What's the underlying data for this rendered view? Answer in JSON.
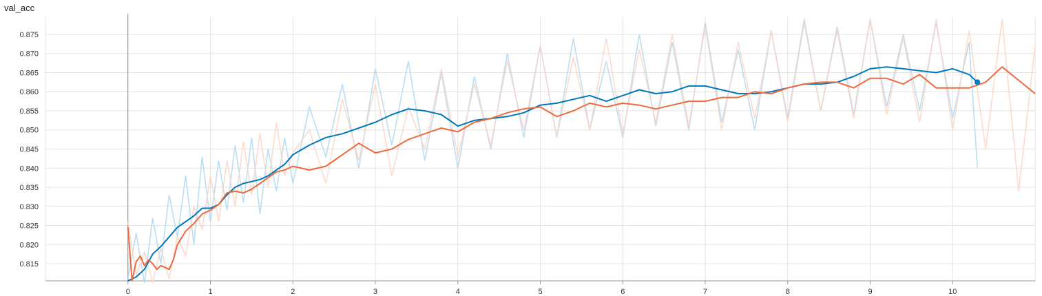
{
  "chart_title": "val_acc",
  "chart_data": {
    "type": "line",
    "title": "val_acc",
    "xlabel": "",
    "ylabel": "",
    "xlim": [
      -1,
      11
    ],
    "ylim": [
      0.8105,
      0.8795
    ],
    "x_ticks": [
      "0",
      "1",
      "2",
      "3",
      "4",
      "5",
      "6",
      "7",
      "8",
      "9",
      "10"
    ],
    "y_ticks": [
      "0.815",
      "0.820",
      "0.825",
      "0.830",
      "0.835",
      "0.840",
      "0.845",
      "0.850",
      "0.855",
      "0.860",
      "0.865",
      "0.870",
      "0.875"
    ],
    "grid": true,
    "series": [
      {
        "color": "#0077bb",
        "raw_color": "#b3d7ee",
        "smoothed": {
          "x": [
            0.0,
            0.1,
            0.2,
            0.3,
            0.4,
            0.5,
            0.6,
            0.7,
            0.8,
            0.9,
            1.0,
            1.1,
            1.2,
            1.3,
            1.4,
            1.5,
            1.6,
            1.7,
            1.8,
            1.9,
            2.0,
            2.2,
            2.4,
            2.6,
            2.8,
            3.0,
            3.2,
            3.4,
            3.6,
            3.8,
            4.0,
            4.2,
            4.4,
            4.6,
            4.8,
            5.0,
            5.2,
            5.4,
            5.6,
            5.8,
            6.0,
            6.2,
            6.4,
            6.6,
            6.8,
            7.0,
            7.2,
            7.4,
            7.6,
            7.8,
            8.0,
            8.2,
            8.4,
            8.6,
            8.8,
            9.0,
            9.2,
            9.4,
            9.6,
            9.8,
            10.0,
            10.2,
            10.3
          ],
          "y": [
            0.8105,
            0.8115,
            0.8135,
            0.8175,
            0.8195,
            0.822,
            0.8245,
            0.826,
            0.8275,
            0.8295,
            0.8295,
            0.8305,
            0.833,
            0.835,
            0.836,
            0.8365,
            0.837,
            0.838,
            0.8395,
            0.841,
            0.8435,
            0.846,
            0.848,
            0.849,
            0.8505,
            0.852,
            0.854,
            0.8555,
            0.855,
            0.854,
            0.851,
            0.8525,
            0.853,
            0.8535,
            0.8545,
            0.8565,
            0.857,
            0.858,
            0.859,
            0.8575,
            0.859,
            0.8605,
            0.8595,
            0.86,
            0.8615,
            0.8615,
            0.8605,
            0.8595,
            0.8595,
            0.86,
            0.861,
            0.862,
            0.862,
            0.8625,
            0.864,
            0.866,
            0.8665,
            0.866,
            0.8655,
            0.865,
            0.866,
            0.8645,
            0.8625
          ]
        },
        "raw": {
          "x": [
            0.0,
            0.1,
            0.2,
            0.3,
            0.4,
            0.5,
            0.6,
            0.7,
            0.8,
            0.9,
            1.0,
            1.1,
            1.2,
            1.3,
            1.4,
            1.5,
            1.6,
            1.7,
            1.8,
            1.9,
            2.0,
            2.2,
            2.4,
            2.6,
            2.8,
            3.0,
            3.2,
            3.4,
            3.6,
            3.8,
            4.0,
            4.2,
            4.4,
            4.6,
            4.8,
            5.0,
            5.2,
            5.4,
            5.6,
            5.8,
            6.0,
            6.2,
            6.4,
            6.6,
            6.8,
            7.0,
            7.2,
            7.4,
            7.6,
            7.8,
            8.0,
            8.2,
            8.4,
            8.6,
            8.8,
            9.0,
            9.2,
            9.4,
            9.6,
            9.8,
            10.0,
            10.2,
            10.3
          ],
          "y": [
            0.811,
            0.823,
            0.809,
            0.827,
            0.815,
            0.833,
            0.822,
            0.838,
            0.82,
            0.843,
            0.826,
            0.842,
            0.829,
            0.846,
            0.831,
            0.848,
            0.828,
            0.845,
            0.834,
            0.848,
            0.836,
            0.856,
            0.843,
            0.862,
            0.84,
            0.866,
            0.846,
            0.868,
            0.842,
            0.865,
            0.84,
            0.864,
            0.845,
            0.87,
            0.848,
            0.872,
            0.848,
            0.874,
            0.85,
            0.868,
            0.848,
            0.875,
            0.851,
            0.873,
            0.85,
            0.878,
            0.852,
            0.871,
            0.85,
            0.876,
            0.853,
            0.879,
            0.855,
            0.877,
            0.854,
            0.879,
            0.856,
            0.875,
            0.855,
            0.878,
            0.853,
            0.873,
            0.84
          ]
        }
      },
      {
        "color": "#ee6a3e",
        "raw_color": "#fcd5c6",
        "smoothed": {
          "x": [
            0.0,
            0.05,
            0.1,
            0.15,
            0.2,
            0.25,
            0.3,
            0.35,
            0.4,
            0.5,
            0.55,
            0.6,
            0.7,
            0.8,
            0.9,
            1.0,
            1.1,
            1.2,
            1.3,
            1.4,
            1.5,
            1.6,
            1.7,
            1.8,
            1.9,
            2.0,
            2.2,
            2.4,
            2.6,
            2.8,
            3.0,
            3.2,
            3.4,
            3.6,
            3.8,
            4.0,
            4.2,
            4.4,
            4.6,
            4.8,
            5.0,
            5.2,
            5.4,
            5.6,
            5.8,
            6.0,
            6.2,
            6.4,
            6.6,
            6.8,
            7.0,
            7.2,
            7.4,
            7.6,
            7.8,
            8.0,
            8.2,
            8.4,
            8.6,
            8.8,
            9.0,
            9.2,
            9.4,
            9.6,
            9.8,
            10.0,
            10.2,
            10.4,
            10.6,
            10.8,
            11.0
          ],
          "y": [
            0.8245,
            0.8105,
            0.8155,
            0.817,
            0.8145,
            0.816,
            0.815,
            0.8135,
            0.8145,
            0.8135,
            0.816,
            0.82,
            0.8235,
            0.8255,
            0.828,
            0.829,
            0.8305,
            0.8335,
            0.834,
            0.8335,
            0.8345,
            0.836,
            0.8375,
            0.839,
            0.8395,
            0.8405,
            0.8395,
            0.8405,
            0.8435,
            0.8465,
            0.844,
            0.845,
            0.8475,
            0.849,
            0.8505,
            0.8495,
            0.852,
            0.853,
            0.8545,
            0.8555,
            0.856,
            0.8535,
            0.855,
            0.857,
            0.856,
            0.857,
            0.8565,
            0.8555,
            0.8565,
            0.8575,
            0.8575,
            0.8585,
            0.8585,
            0.86,
            0.8595,
            0.861,
            0.862,
            0.8625,
            0.8625,
            0.861,
            0.8635,
            0.8635,
            0.862,
            0.8645,
            0.861,
            0.861,
            0.861,
            0.8625,
            0.8665,
            0.863,
            0.8595
          ]
        },
        "raw": {
          "x": [
            0.0,
            0.1,
            0.2,
            0.3,
            0.4,
            0.5,
            0.6,
            0.7,
            0.8,
            0.9,
            1.0,
            1.1,
            1.2,
            1.3,
            1.4,
            1.5,
            1.6,
            1.7,
            1.8,
            1.9,
            2.0,
            2.2,
            2.4,
            2.6,
            2.8,
            3.0,
            3.2,
            3.4,
            3.6,
            3.8,
            4.0,
            4.2,
            4.4,
            4.6,
            4.8,
            5.0,
            5.2,
            5.4,
            5.6,
            5.8,
            6.0,
            6.2,
            6.4,
            6.6,
            6.8,
            7.0,
            7.2,
            7.4,
            7.6,
            7.8,
            8.0,
            8.2,
            8.4,
            8.6,
            8.8,
            9.0,
            9.2,
            9.4,
            9.6,
            9.8,
            10.0,
            10.2,
            10.4,
            10.6,
            10.8,
            11.0
          ],
          "y": [
            0.826,
            0.812,
            0.818,
            0.81,
            0.819,
            0.811,
            0.822,
            0.817,
            0.83,
            0.824,
            0.838,
            0.826,
            0.842,
            0.83,
            0.847,
            0.833,
            0.849,
            0.835,
            0.852,
            0.838,
            0.844,
            0.85,
            0.836,
            0.858,
            0.842,
            0.862,
            0.838,
            0.856,
            0.845,
            0.866,
            0.843,
            0.862,
            0.846,
            0.868,
            0.85,
            0.872,
            0.848,
            0.869,
            0.85,
            0.874,
            0.849,
            0.871,
            0.852,
            0.875,
            0.851,
            0.877,
            0.85,
            0.873,
            0.853,
            0.876,
            0.852,
            0.878,
            0.855,
            0.876,
            0.853,
            0.879,
            0.854,
            0.874,
            0.852,
            0.879,
            0.85,
            0.876,
            0.845,
            0.879,
            0.834,
            0.872
          ]
        }
      }
    ]
  }
}
